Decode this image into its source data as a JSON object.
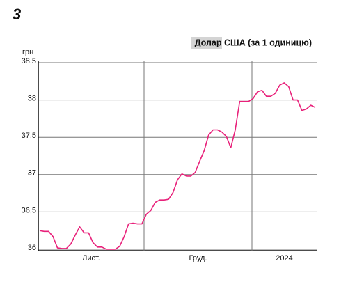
{
  "badge": "3",
  "chart_data": {
    "type": "line",
    "title": "Долар США (за 1 одиницю)",
    "y_label": "грн",
    "x_labels": [
      "Лист.",
      "Груд.",
      "2024"
    ],
    "color": "#e8217a",
    "values": [
      36.25,
      36.24,
      36.24,
      36.17,
      36.02,
      36.01,
      36.01,
      36.07,
      36.19,
      36.3,
      36.22,
      36.22,
      36.09,
      36.03,
      36.03,
      36.0,
      36.0,
      36.0,
      36.04,
      36.17,
      36.34,
      36.35,
      36.34,
      36.34,
      36.47,
      36.52,
      36.63,
      36.66,
      36.66,
      36.67,
      36.76,
      36.93,
      37.01,
      36.98,
      36.98,
      37.03,
      37.18,
      37.32,
      37.53,
      37.6,
      37.6,
      37.57,
      37.51,
      37.36,
      37.6,
      37.98,
      37.98,
      37.98,
      38.02,
      38.11,
      38.13,
      38.05,
      38.05,
      38.09,
      38.2,
      38.23,
      38.18,
      38.0,
      38.0,
      37.86,
      37.88,
      37.93,
      37.9
    ],
    "ylim": [
      36,
      38.5
    ],
    "yticks": [
      36,
      {
        "value": 36.5,
        "label": "36,5"
      },
      37,
      {
        "value": 37.5,
        "label": "37,5"
      },
      38,
      {
        "value": 38.5,
        "label": "38,5"
      }
    ],
    "grid": true
  }
}
